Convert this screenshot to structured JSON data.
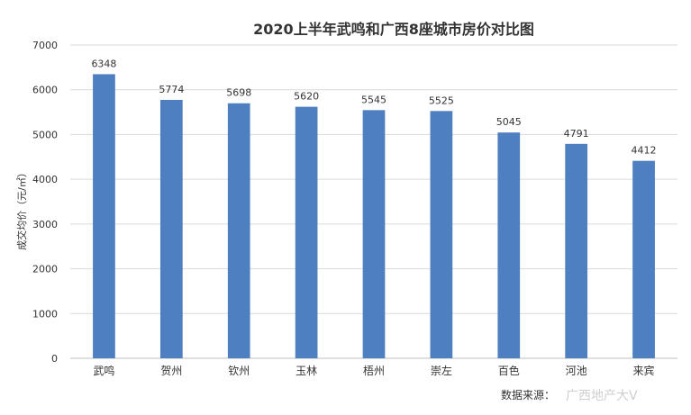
{
  "chart_data": {
    "type": "bar",
    "title": "2020上半年武鸣和广西8座城市房价对比图",
    "ylabel": "成交均价（元/㎡）",
    "xlabel": "",
    "categories": [
      "武鸣",
      "贺州",
      "钦州",
      "玉林",
      "梧州",
      "崇左",
      "百色",
      "河池",
      "来宾"
    ],
    "values": [
      6348,
      5774,
      5698,
      5620,
      5545,
      5525,
      5045,
      4791,
      4412
    ],
    "ylim": [
      0,
      7000
    ],
    "yticks": [
      "0",
      "1000",
      "2000",
      "3000",
      "4000",
      "5000",
      "6000",
      "7000"
    ],
    "bar_color": "#4e7fc1",
    "grid": true,
    "legend": "none"
  },
  "source_note": "数据来源：",
  "watermark": "广西地产大V"
}
